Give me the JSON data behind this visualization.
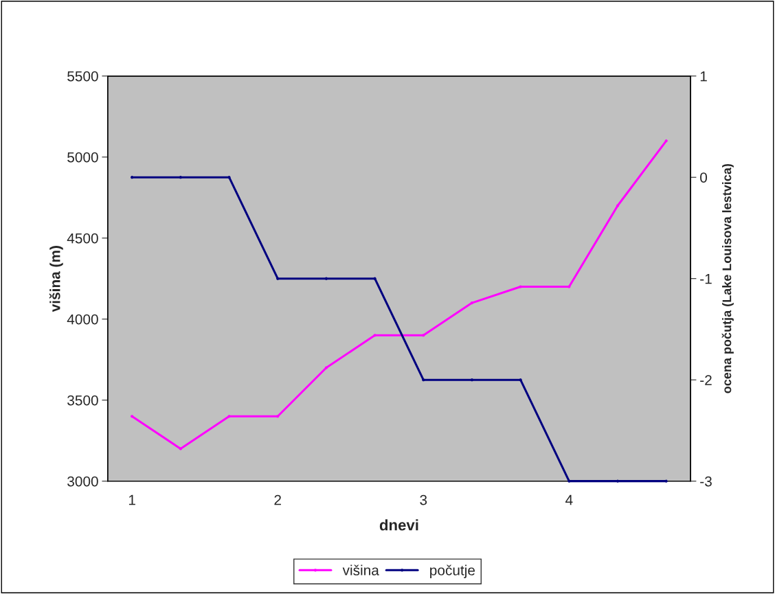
{
  "chart_data": {
    "type": "line",
    "xlabel": "dnevi",
    "ylabel": "višina (m)",
    "y2label": "ocena počutja (Lake Louisova lestvica)",
    "categories": [
      "1",
      null,
      null,
      "2",
      null,
      null,
      "3",
      null,
      null,
      "4",
      null,
      null
    ],
    "series": [
      {
        "name": "višina",
        "color": "#ff00ff",
        "values": [
          3400,
          3200,
          3400,
          3400,
          3700,
          3900,
          3900,
          4100,
          4200,
          4200,
          4700,
          5100
        ]
      },
      {
        "name": "počutje",
        "color": "#000080",
        "axis": "y2",
        "values": [
          0,
          0,
          0,
          -1,
          -1,
          -1,
          -2,
          -2,
          -2,
          -3,
          -3,
          -3
        ]
      }
    ],
    "ylim": [
      3000,
      5500
    ],
    "yticks": [
      3000,
      3500,
      4000,
      4500,
      5000,
      5500
    ],
    "y2lim": [
      -3,
      1
    ],
    "y2ticks": [
      -3,
      -2,
      -1,
      0,
      1
    ],
    "marker": "circle",
    "line_style": "solid",
    "grid": false,
    "legend": "bottom"
  }
}
